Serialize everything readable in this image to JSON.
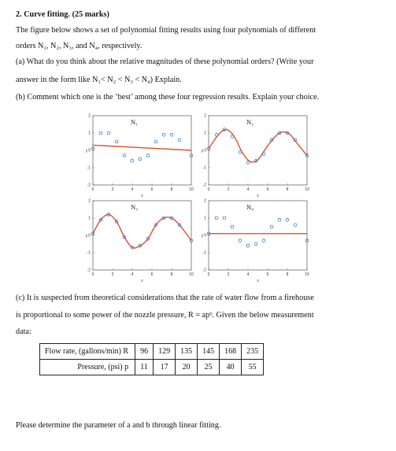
{
  "question": {
    "heading": "2. Curve fitting. (25 marks)",
    "intro_1": "The figure below shows a set of polynomial fitting results using four polynomials of different",
    "intro_2": "orders N₁, N₂, N₃, and N₄, respectively.",
    "part_a_1": "(a) What do you think about the relative magnitudes of these polynomial orders? (Write your",
    "part_a_2": "answer in the form like N₁< N₂ < N₃ < N₄) Explain.",
    "part_b": "(b) Comment which one is the ‘best’ among these four regression results. Explain your choice.",
    "part_c_1": "(c) It is suspected from theoretical considerations that the rate of water flow from a firehouse",
    "part_c_2": "is proportional to some power of the nozzle pressure, R = apᵇ. Given the below measurement",
    "part_c_3": "data:",
    "final": "Please determine the parameter of a and b through linear fitting."
  },
  "table": {
    "row1_label": "Flow rate, (gallons/min) R",
    "row2_label": "Pressure, (psi) p",
    "row1": [
      "96",
      "129",
      "135",
      "145",
      "168",
      "235"
    ],
    "row2": [
      "11",
      "17",
      "20",
      "25",
      "40",
      "55"
    ]
  },
  "chart_data": [
    {
      "type": "scatter",
      "title": "N₁",
      "xlabel": "x",
      "ylabel": "y",
      "xlim": [
        0,
        10
      ],
      "ylim": [
        -2,
        2
      ],
      "xticks": [
        "0",
        "2",
        "4",
        "6",
        "8",
        "10"
      ],
      "yticks": [
        "2",
        "1",
        "0",
        "-1",
        "-2"
      ],
      "points": [
        [
          0,
          0.1
        ],
        [
          0.8,
          1.0
        ],
        [
          1.6,
          1.0
        ],
        [
          2.4,
          0.5
        ],
        [
          3.2,
          -0.3
        ],
        [
          4.0,
          -0.6
        ],
        [
          4.8,
          -0.5
        ],
        [
          5.6,
          -0.3
        ],
        [
          6.4,
          0.5
        ],
        [
          7.2,
          0.9
        ],
        [
          8.0,
          0.9
        ],
        [
          8.8,
          0.6
        ],
        [
          10,
          -0.3
        ]
      ],
      "fit": [
        [
          0,
          0.3
        ],
        [
          10,
          0.0
        ]
      ],
      "colors": {
        "points": "#3a7ec8",
        "fit": "#d9532b"
      }
    },
    {
      "type": "scatter",
      "title": "N₂",
      "xlabel": "x",
      "ylabel": "y",
      "xlim": [
        0,
        10
      ],
      "ylim": [
        -2,
        2
      ],
      "xticks": [
        "0",
        "2",
        "4",
        "6",
        "8",
        "10"
      ],
      "yticks": [
        "2",
        "1",
        "0",
        "-1",
        "-2"
      ],
      "points": [
        [
          0,
          0.1
        ],
        [
          0.8,
          0.9
        ],
        [
          1.6,
          1.2
        ],
        [
          2.4,
          0.8
        ],
        [
          3.2,
          -0.1
        ],
        [
          4.0,
          -0.7
        ],
        [
          4.8,
          -0.6
        ],
        [
          5.6,
          -0.2
        ],
        [
          6.4,
          0.6
        ],
        [
          7.2,
          1.0
        ],
        [
          8.0,
          1.0
        ],
        [
          8.8,
          0.6
        ],
        [
          10,
          -0.3
        ]
      ],
      "fit": [
        [
          0,
          0.1
        ],
        [
          1,
          0.9
        ],
        [
          1.8,
          1.2
        ],
        [
          2.6,
          0.8
        ],
        [
          3.4,
          -0.1
        ],
        [
          4.2,
          -0.65
        ],
        [
          5,
          -0.55
        ],
        [
          5.8,
          0.1
        ],
        [
          6.6,
          0.7
        ],
        [
          7.4,
          1.05
        ],
        [
          8.2,
          0.95
        ],
        [
          9,
          0.4
        ],
        [
          10,
          -0.3
        ]
      ],
      "colors": {
        "points": "#3a7ec8",
        "fit": "#d9532b"
      }
    },
    {
      "type": "scatter",
      "title": "N₃",
      "xlabel": "x",
      "ylabel": "y",
      "xlim": [
        0,
        10
      ],
      "ylim": [
        -2,
        2
      ],
      "xticks": [
        "0",
        "2",
        "4",
        "6",
        "8",
        "10"
      ],
      "yticks": [
        "2",
        "1",
        "0",
        "-1",
        "-2"
      ],
      "points": [
        [
          0,
          0.1
        ],
        [
          0.8,
          0.9
        ],
        [
          1.6,
          1.2
        ],
        [
          2.4,
          0.8
        ],
        [
          3.2,
          -0.1
        ],
        [
          4.0,
          -0.7
        ],
        [
          4.8,
          -0.6
        ],
        [
          5.6,
          -0.2
        ],
        [
          6.4,
          0.6
        ],
        [
          7.2,
          1.0
        ],
        [
          8.0,
          1.0
        ],
        [
          8.8,
          0.6
        ],
        [
          10,
          -0.3
        ]
      ],
      "fit": [
        [
          0,
          0.1
        ],
        [
          0.8,
          0.9
        ],
        [
          1.6,
          1.2
        ],
        [
          2.4,
          0.8
        ],
        [
          3.2,
          -0.1
        ],
        [
          4.0,
          -0.7
        ],
        [
          4.8,
          -0.6
        ],
        [
          5.6,
          -0.2
        ],
        [
          6.4,
          0.6
        ],
        [
          7.2,
          1.0
        ],
        [
          8.0,
          1.0
        ],
        [
          8.8,
          0.6
        ],
        [
          10,
          -0.3
        ]
      ],
      "colors": {
        "points": "#3a7ec8",
        "fit": "#d9532b"
      }
    },
    {
      "type": "scatter",
      "title": "N₄",
      "xlabel": "x",
      "ylabel": "y",
      "xlim": [
        0,
        10
      ],
      "ylim": [
        -2,
        2
      ],
      "xticks": [
        "0",
        "2",
        "4",
        "6",
        "8",
        "10"
      ],
      "yticks": [
        "2",
        "1",
        "0",
        "-1",
        "-2"
      ],
      "points": [
        [
          0,
          0.1
        ],
        [
          0.8,
          1.0
        ],
        [
          1.6,
          1.0
        ],
        [
          2.4,
          0.5
        ],
        [
          3.2,
          -0.3
        ],
        [
          4.0,
          -0.6
        ],
        [
          4.8,
          -0.5
        ],
        [
          5.6,
          -0.3
        ],
        [
          6.4,
          0.5
        ],
        [
          7.2,
          0.9
        ],
        [
          8.0,
          0.9
        ],
        [
          8.8,
          0.6
        ],
        [
          10,
          -0.3
        ]
      ],
      "fit": [
        [
          0,
          0.1
        ],
        [
          10,
          0.1
        ]
      ],
      "colors": {
        "points": "#3a7ec8",
        "fit": "#d9532b"
      }
    }
  ]
}
